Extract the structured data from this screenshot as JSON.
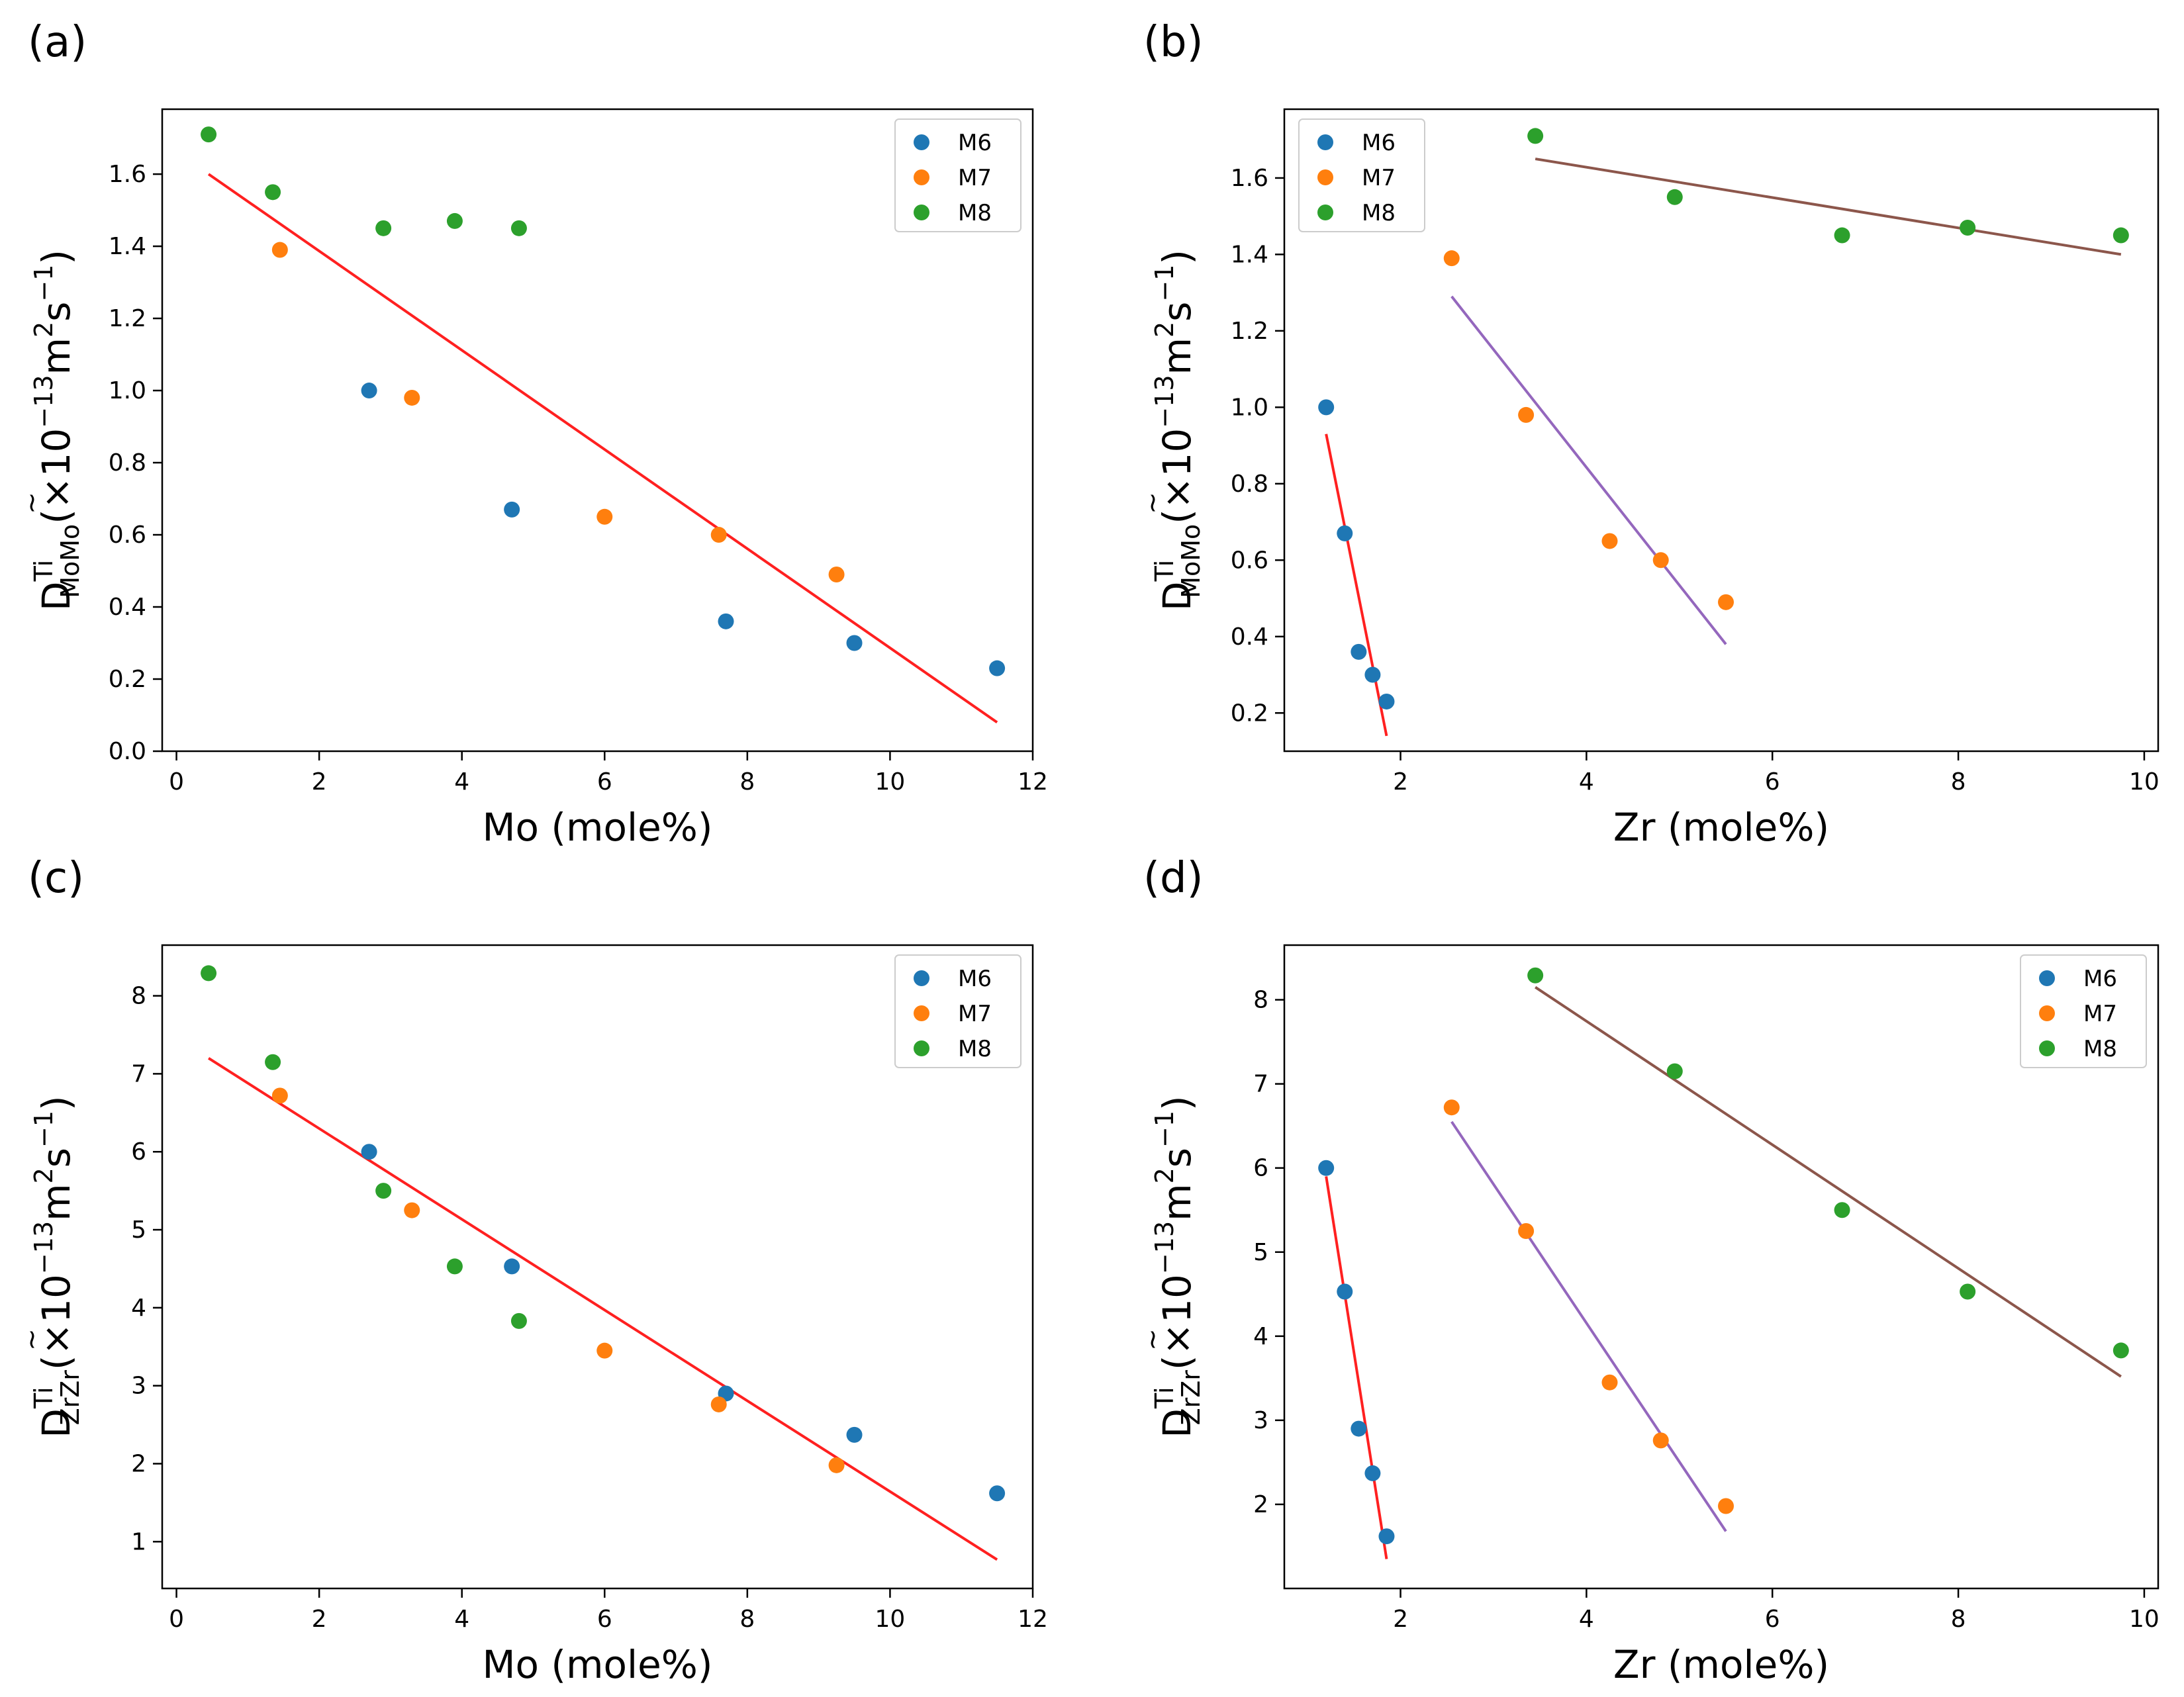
{
  "colors": {
    "M6": "#1f77b4",
    "M7": "#ff7f0e",
    "M8": "#2ca02c",
    "fit_red": "#ff2020",
    "fit_purple": "#9467bd",
    "fit_brown": "#8c564b"
  },
  "chart_data": [
    {
      "type": "scatter",
      "panel_label": "(a)",
      "xlabel": "Mo (mole%)",
      "ylabel_main": "D",
      "ylabel_sup": "Ti",
      "ylabel_sub": "MoMo",
      "ylabel_unit_open": "(×10",
      "ylabel_unit_exp1": "−13",
      "ylabel_unit_m": "m",
      "ylabel_unit_exp2": "2",
      "ylabel_unit_s": "s",
      "ylabel_unit_exp3": "−1",
      "ylabel_unit_close": ")",
      "xlim": [
        -0.2,
        12
      ],
      "ylim": [
        0.0,
        1.78
      ],
      "xticks": [
        0,
        2,
        4,
        6,
        8,
        10,
        12
      ],
      "yticks": [
        0.0,
        0.2,
        0.4,
        0.6,
        0.8,
        1.0,
        1.2,
        1.4,
        1.6
      ],
      "ytick_labels": [
        "0.0",
        "0.2",
        "0.4",
        "0.6",
        "0.8",
        "1.0",
        "1.2",
        "1.4",
        "1.6"
      ],
      "legend_position": "top-right",
      "series": [
        {
          "name": "M6",
          "x": [
            2.7,
            4.7,
            7.7,
            9.5,
            11.5
          ],
          "y": [
            1.0,
            0.67,
            0.36,
            0.3,
            0.23
          ]
        },
        {
          "name": "M7",
          "x": [
            1.45,
            3.3,
            6.0,
            7.6,
            9.25
          ],
          "y": [
            1.39,
            0.98,
            0.65,
            0.6,
            0.49
          ]
        },
        {
          "name": "M8",
          "x": [
            0.45,
            1.35,
            2.9,
            3.9,
            4.8
          ],
          "y": [
            1.71,
            1.55,
            1.45,
            1.47,
            1.45
          ]
        }
      ],
      "fits": [
        {
          "color_key": "fit_red",
          "x": [
            0.45,
            11.5
          ],
          "y": [
            1.6,
            0.08
          ]
        }
      ]
    },
    {
      "type": "scatter",
      "panel_label": "(b)",
      "xlabel": "Zr (mole%)",
      "ylabel_main": "D",
      "ylabel_sup": "Ti",
      "ylabel_sub": "MoMo",
      "ylabel_unit_open": "(×10",
      "ylabel_unit_exp1": "−13",
      "ylabel_unit_m": "m",
      "ylabel_unit_exp2": "2",
      "ylabel_unit_s": "s",
      "ylabel_unit_exp3": "−1",
      "ylabel_unit_close": ")",
      "xlim": [
        0.75,
        10.15
      ],
      "ylim": [
        0.1,
        1.78
      ],
      "xticks": [
        2,
        4,
        6,
        8,
        10
      ],
      "yticks": [
        0.2,
        0.4,
        0.6,
        0.8,
        1.0,
        1.2,
        1.4,
        1.6
      ],
      "ytick_labels": [
        "0.2",
        "0.4",
        "0.6",
        "0.8",
        "1.0",
        "1.2",
        "1.4",
        "1.6"
      ],
      "legend_position": "top-left",
      "series": [
        {
          "name": "M6",
          "x": [
            1.2,
            1.4,
            1.55,
            1.7,
            1.85
          ],
          "y": [
            1.0,
            0.67,
            0.36,
            0.3,
            0.23
          ]
        },
        {
          "name": "M7",
          "x": [
            2.55,
            3.35,
            4.25,
            4.8,
            5.5
          ],
          "y": [
            1.39,
            0.98,
            0.65,
            0.6,
            0.49
          ]
        },
        {
          "name": "M8",
          "x": [
            3.45,
            4.95,
            6.75,
            8.1,
            9.75
          ],
          "y": [
            1.71,
            1.55,
            1.45,
            1.47,
            1.45
          ]
        }
      ],
      "fits": [
        {
          "color_key": "fit_red",
          "x": [
            1.2,
            1.85
          ],
          "y": [
            0.93,
            0.14
          ]
        },
        {
          "color_key": "fit_purple",
          "x": [
            2.55,
            5.5
          ],
          "y": [
            1.29,
            0.38
          ]
        },
        {
          "color_key": "fit_brown",
          "x": [
            3.45,
            9.75
          ],
          "y": [
            1.65,
            1.4
          ]
        }
      ]
    },
    {
      "type": "scatter",
      "panel_label": "(c)",
      "xlabel": "Mo (mole%)",
      "ylabel_main": "D",
      "ylabel_sup": "Ti",
      "ylabel_sub": "ZrZr",
      "ylabel_unit_open": "(×10",
      "ylabel_unit_exp1": "−13",
      "ylabel_unit_m": "m",
      "ylabel_unit_exp2": "2",
      "ylabel_unit_s": "s",
      "ylabel_unit_exp3": "−1",
      "ylabel_unit_close": ")",
      "xlim": [
        -0.2,
        12
      ],
      "ylim": [
        0.4,
        8.65
      ],
      "xticks": [
        0,
        2,
        4,
        6,
        8,
        10,
        12
      ],
      "yticks": [
        1,
        2,
        3,
        4,
        5,
        6,
        7,
        8
      ],
      "ytick_labels": [
        "1",
        "2",
        "3",
        "4",
        "5",
        "6",
        "7",
        "8"
      ],
      "legend_position": "top-right",
      "series": [
        {
          "name": "M6",
          "x": [
            2.7,
            4.7,
            7.7,
            9.5,
            11.5
          ],
          "y": [
            6.0,
            4.53,
            2.9,
            2.37,
            1.62
          ]
        },
        {
          "name": "M7",
          "x": [
            1.45,
            3.3,
            6.0,
            7.6,
            9.25
          ],
          "y": [
            6.72,
            5.25,
            3.45,
            2.76,
            1.98
          ]
        },
        {
          "name": "M8",
          "x": [
            0.45,
            1.35,
            2.9,
            3.9,
            4.8
          ],
          "y": [
            8.29,
            7.15,
            5.5,
            4.53,
            3.83
          ]
        }
      ],
      "fits": [
        {
          "color_key": "fit_red",
          "x": [
            0.45,
            11.5
          ],
          "y": [
            7.2,
            0.77
          ]
        }
      ]
    },
    {
      "type": "scatter",
      "panel_label": "(d)",
      "xlabel": "Zr (mole%)",
      "ylabel_main": "D",
      "ylabel_sup": "Ti",
      "ylabel_sub": "ZrZr",
      "ylabel_unit_open": "(×10",
      "ylabel_unit_exp1": "−13",
      "ylabel_unit_m": "m",
      "ylabel_unit_exp2": "2",
      "ylabel_unit_s": "s",
      "ylabel_unit_exp3": "−1",
      "ylabel_unit_close": ")",
      "xlim": [
        0.75,
        10.15
      ],
      "ylim": [
        1.0,
        8.65
      ],
      "xticks": [
        2,
        4,
        6,
        8,
        10
      ],
      "yticks": [
        2,
        3,
        4,
        5,
        6,
        7,
        8
      ],
      "ytick_labels": [
        "2",
        "3",
        "4",
        "5",
        "6",
        "7",
        "8"
      ],
      "legend_position": "top-right",
      "series": [
        {
          "name": "M6",
          "x": [
            1.2,
            1.4,
            1.55,
            1.7,
            1.85
          ],
          "y": [
            6.0,
            4.53,
            2.9,
            2.37,
            1.62
          ]
        },
        {
          "name": "M7",
          "x": [
            2.55,
            3.35,
            4.25,
            4.8,
            5.5
          ],
          "y": [
            6.72,
            5.25,
            3.45,
            2.76,
            1.98
          ]
        },
        {
          "name": "M8",
          "x": [
            3.45,
            4.95,
            6.75,
            8.1,
            9.75
          ],
          "y": [
            8.29,
            7.15,
            5.5,
            4.53,
            3.83
          ]
        }
      ],
      "fits": [
        {
          "color_key": "fit_red",
          "x": [
            1.2,
            1.85
          ],
          "y": [
            5.9,
            1.35
          ]
        },
        {
          "color_key": "fit_purple",
          "x": [
            2.55,
            5.5
          ],
          "y": [
            6.55,
            1.68
          ]
        },
        {
          "color_key": "fit_brown",
          "x": [
            3.45,
            9.75
          ],
          "y": [
            8.15,
            3.52
          ]
        }
      ]
    }
  ]
}
